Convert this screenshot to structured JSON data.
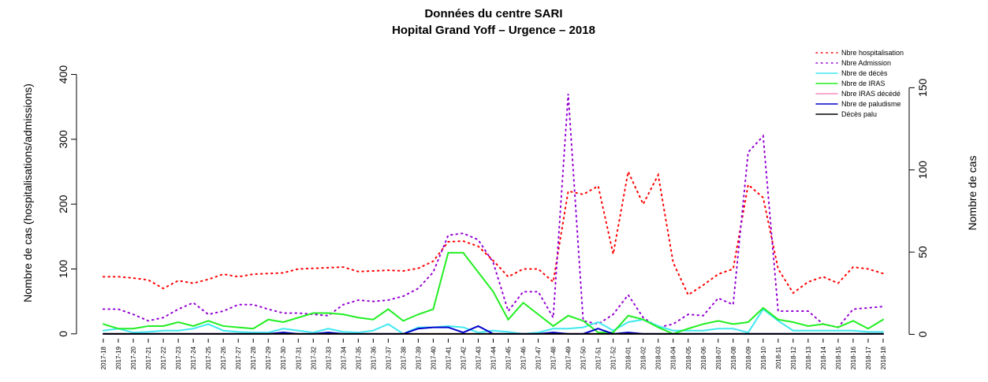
{
  "chart_data": {
    "type": "line",
    "title": "Données du centre SARI",
    "subtitle": "Hopital Grand Yoff – Urgence – 2018",
    "ylabel": "Nombre de cas (hospitalisations/admissions)",
    "y2label": "Nombre de cas",
    "categories": [
      "2017-18",
      "2017-19",
      "2017-20",
      "2017-21",
      "2017-22",
      "2017-23",
      "2017-24",
      "2017-25",
      "2017-26",
      "2017-27",
      "2017-28",
      "2017-29",
      "2017-30",
      "2017-31",
      "2017-32",
      "2017-33",
      "2017-34",
      "2017-35",
      "2017-36",
      "2017-37",
      "2017-38",
      "2017-39",
      "2017-40",
      "2017-41",
      "2017-42",
      "2017-43",
      "2017-44",
      "2017-45",
      "2017-46",
      "2017-47",
      "2017-48",
      "2017-49",
      "2017-50",
      "2017-51",
      "2017-52",
      "2018-01",
      "2018-02",
      "2018-03",
      "2018-04",
      "2018-05",
      "2018-06",
      "2018-07",
      "2018-08",
      "2018-09",
      "2018-10",
      "2018-11",
      "2018-12",
      "2018-13",
      "2018-14",
      "2018-15",
      "2018-16",
      "2018-17",
      "2018-18"
    ],
    "ylim": [
      -16,
      448
    ],
    "yticks": [
      0,
      100,
      200,
      300,
      400
    ],
    "y2lim": [
      -6,
      177
    ],
    "y2ticks": [
      0,
      50,
      100,
      150
    ],
    "legend": "top-right",
    "series": [
      {
        "name": "Nbre hospitalisation",
        "color": "#ff0000",
        "style": "dotted",
        "values": [
          88,
          88,
          86,
          83,
          70,
          82,
          78,
          84,
          92,
          88,
          92,
          93,
          94,
          100,
          101,
          102,
          103,
          96,
          97,
          98,
          97,
          101,
          112,
          142,
          143,
          135,
          113,
          88,
          100,
          100,
          80,
          220,
          215,
          228,
          123,
          250,
          200,
          245,
          110,
          60,
          75,
          92,
          100,
          230,
          210,
          100,
          63,
          80,
          88,
          78,
          103,
          100,
          93
        ]
      },
      {
        "name": "Nbre Admission",
        "color": "#9400d3",
        "style": "dotted",
        "values": [
          38,
          38,
          30,
          20,
          25,
          38,
          48,
          30,
          35,
          45,
          45,
          38,
          32,
          32,
          30,
          28,
          45,
          52,
          50,
          52,
          58,
          70,
          95,
          152,
          155,
          145,
          110,
          35,
          65,
          65,
          25,
          370,
          20,
          15,
          30,
          60,
          25,
          10,
          15,
          30,
          28,
          55,
          45,
          280,
          305,
          35,
          35,
          35,
          15,
          10,
          38,
          40,
          42
        ]
      },
      {
        "name": "Nbre de décès",
        "color": "#40e8f0",
        "style": "solid",
        "values": [
          5,
          8,
          2,
          3,
          5,
          5,
          8,
          15,
          5,
          3,
          2,
          2,
          8,
          5,
          2,
          8,
          3,
          2,
          5,
          15,
          0,
          10,
          10,
          12,
          10,
          2,
          5,
          3,
          0,
          2,
          8,
          8,
          10,
          18,
          5,
          18,
          22,
          12,
          5,
          5,
          5,
          8,
          8,
          2,
          38,
          20,
          5,
          5,
          5,
          5,
          5,
          3,
          3
        ]
      },
      {
        "name": "Nbre de IRAS",
        "color": "#22ee22",
        "style": "solid",
        "values": [
          15,
          8,
          8,
          12,
          12,
          18,
          12,
          20,
          12,
          10,
          8,
          22,
          18,
          25,
          32,
          32,
          30,
          25,
          22,
          38,
          20,
          30,
          38,
          125,
          125,
          95,
          65,
          22,
          48,
          30,
          12,
          28,
          20,
          2,
          2,
          28,
          22,
          10,
          0,
          8,
          15,
          20,
          15,
          18,
          40,
          22,
          18,
          12,
          15,
          10,
          20,
          8,
          22
        ]
      },
      {
        "name": "Nbre IRAS décédé",
        "color": "#ff88bb",
        "style": "solid",
        "values": [
          0,
          0,
          0,
          0,
          0,
          0,
          0,
          0,
          0,
          0,
          0,
          0,
          0,
          0,
          0,
          0,
          0,
          0,
          0,
          0,
          0,
          0,
          0,
          0,
          0,
          0,
          0,
          0,
          0,
          0,
          0,
          0,
          0,
          0,
          0,
          0,
          0,
          0,
          0,
          0,
          0,
          0,
          0,
          0,
          0,
          0,
          0,
          0,
          0,
          0,
          0,
          0,
          0
        ]
      },
      {
        "name": "Nbre de paludisme",
        "color": "#0000cc",
        "style": "solid",
        "values": [
          0,
          0,
          0,
          0,
          0,
          0,
          0,
          0,
          0,
          0,
          0,
          0,
          2,
          0,
          0,
          2,
          0,
          0,
          0,
          0,
          0,
          8,
          10,
          10,
          2,
          12,
          0,
          0,
          0,
          0,
          2,
          0,
          0,
          8,
          0,
          2,
          0,
          0,
          0,
          0,
          0,
          0,
          0,
          0,
          0,
          0,
          0,
          0,
          0,
          0,
          0,
          0,
          0
        ]
      },
      {
        "name": "Décès palu",
        "color": "#000000",
        "style": "solid",
        "values": [
          0,
          0,
          0,
          0,
          0,
          0,
          0,
          0,
          0,
          0,
          0,
          0,
          0,
          0,
          0,
          0,
          0,
          0,
          0,
          0,
          0,
          0,
          0,
          0,
          0,
          0,
          0,
          0,
          0,
          0,
          0,
          0,
          0,
          0,
          0,
          0,
          0,
          0,
          0,
          0,
          0,
          0,
          0,
          0,
          0,
          0,
          0,
          0,
          0,
          0,
          0,
          0,
          0
        ]
      }
    ]
  }
}
